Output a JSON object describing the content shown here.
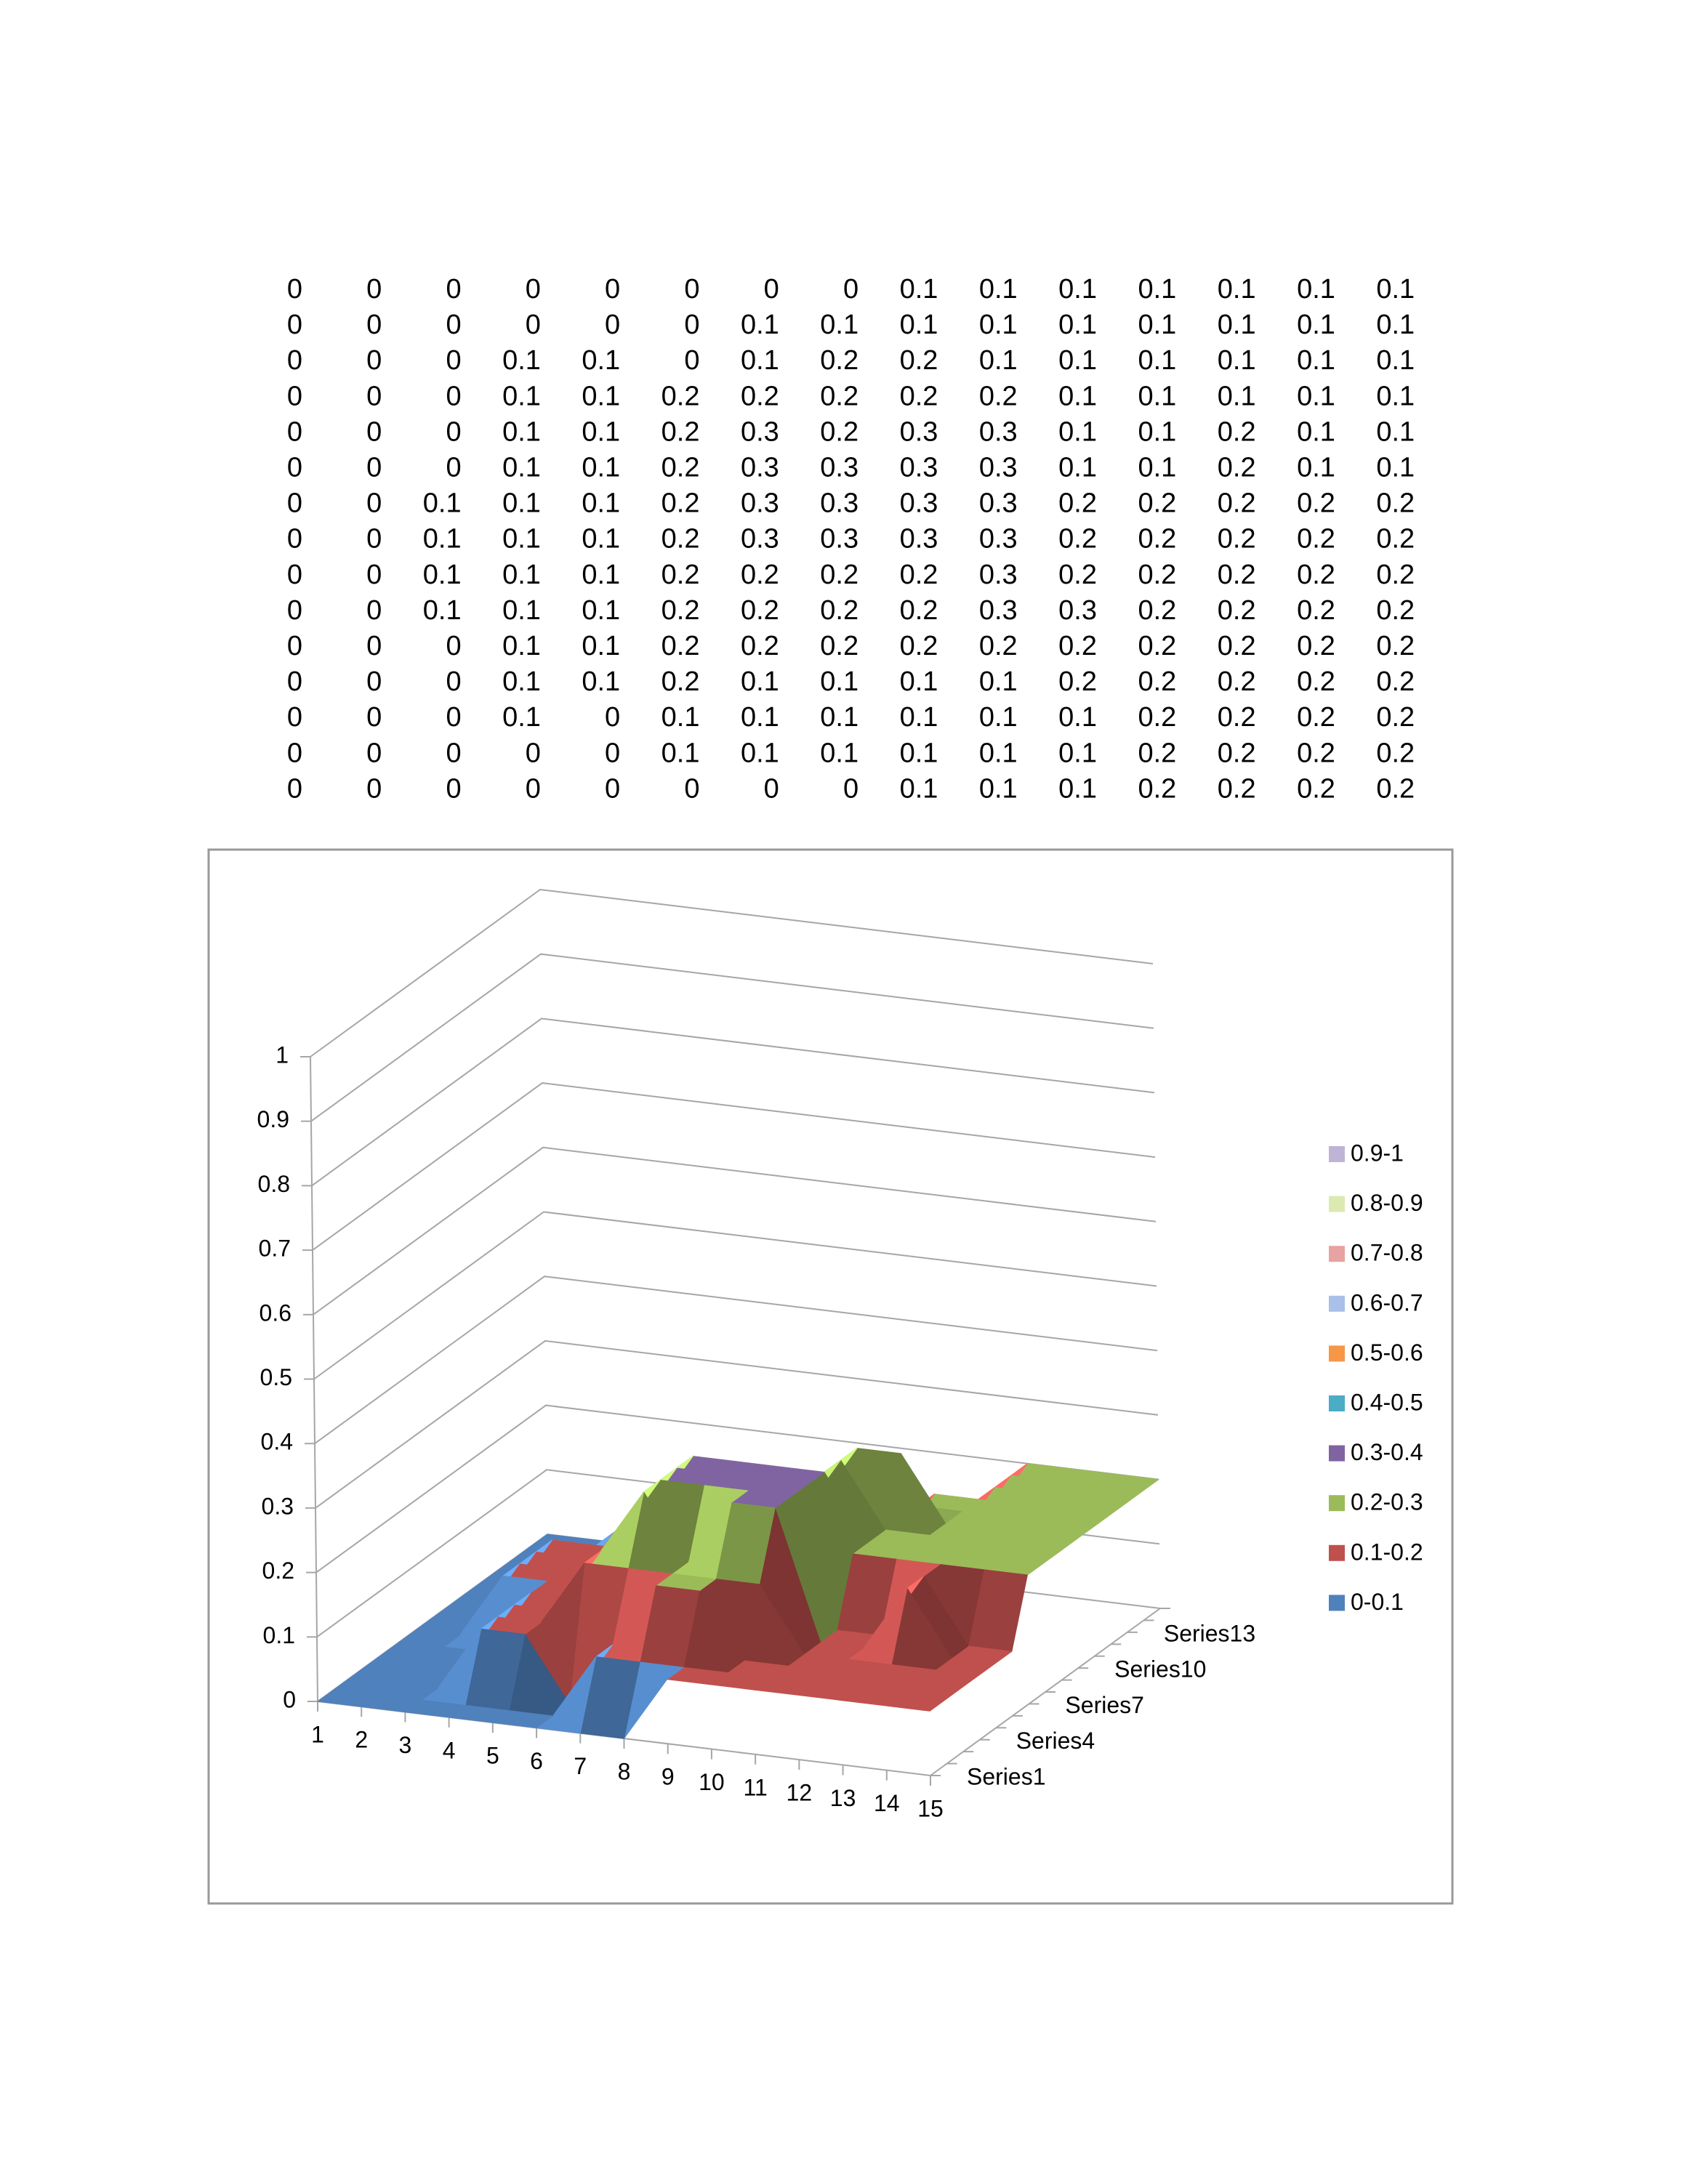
{
  "chart_data": {
    "type": "surface3d",
    "categories": [
      1,
      2,
      3,
      4,
      5,
      6,
      7,
      8,
      9,
      10,
      11,
      12,
      13,
      14,
      15
    ],
    "series": [
      {
        "name": "Series1",
        "values": [
          0,
          0,
          0,
          0,
          0,
          0,
          0,
          0,
          0.1,
          0.1,
          0.1,
          0.1,
          0.1,
          0.1,
          0.1
        ]
      },
      {
        "name": null,
        "values": [
          0,
          0,
          0,
          0,
          0,
          0,
          0.1,
          0.1,
          0.1,
          0.1,
          0.1,
          0.1,
          0.1,
          0.1,
          0.1
        ]
      },
      {
        "name": null,
        "values": [
          0,
          0,
          0,
          0.1,
          0.1,
          0,
          0.1,
          0.2,
          0.2,
          0.1,
          0.1,
          0.1,
          0.1,
          0.1,
          0.1
        ]
      },
      {
        "name": "Series4",
        "values": [
          0,
          0,
          0,
          0.1,
          0.1,
          0.2,
          0.2,
          0.2,
          0.2,
          0.2,
          0.1,
          0.1,
          0.1,
          0.1,
          0.1
        ]
      },
      {
        "name": null,
        "values": [
          0,
          0,
          0,
          0.1,
          0.1,
          0.2,
          0.3,
          0.2,
          0.3,
          0.3,
          0.1,
          0.1,
          0.2,
          0.1,
          0.1
        ]
      },
      {
        "name": null,
        "values": [
          0,
          0,
          0,
          0.1,
          0.1,
          0.2,
          0.3,
          0.3,
          0.3,
          0.3,
          0.1,
          0.1,
          0.2,
          0.1,
          0.1
        ]
      },
      {
        "name": "Series7",
        "values": [
          0,
          0,
          0.1,
          0.1,
          0.1,
          0.2,
          0.3,
          0.3,
          0.3,
          0.3,
          0.2,
          0.2,
          0.2,
          0.2,
          0.2
        ]
      },
      {
        "name": null,
        "values": [
          0,
          0,
          0.1,
          0.1,
          0.1,
          0.2,
          0.3,
          0.3,
          0.3,
          0.3,
          0.2,
          0.2,
          0.2,
          0.2,
          0.2
        ]
      },
      {
        "name": null,
        "values": [
          0,
          0,
          0.1,
          0.1,
          0.1,
          0.2,
          0.2,
          0.2,
          0.2,
          0.3,
          0.2,
          0.2,
          0.2,
          0.2,
          0.2
        ]
      },
      {
        "name": "Series10",
        "values": [
          0,
          0,
          0.1,
          0.1,
          0.1,
          0.2,
          0.2,
          0.2,
          0.2,
          0.3,
          0.3,
          0.2,
          0.2,
          0.2,
          0.2
        ]
      },
      {
        "name": null,
        "values": [
          0,
          0,
          0,
          0.1,
          0.1,
          0.2,
          0.2,
          0.2,
          0.2,
          0.2,
          0.2,
          0.2,
          0.2,
          0.2,
          0.2
        ]
      },
      {
        "name": null,
        "values": [
          0,
          0,
          0,
          0.1,
          0.1,
          0.2,
          0.1,
          0.1,
          0.1,
          0.1,
          0.2,
          0.2,
          0.2,
          0.2,
          0.2
        ]
      },
      {
        "name": "Series13",
        "values": [
          0,
          0,
          0,
          0.1,
          0,
          0.1,
          0.1,
          0.1,
          0.1,
          0.1,
          0.1,
          0.2,
          0.2,
          0.2,
          0.2
        ]
      },
      {
        "name": null,
        "values": [
          0,
          0,
          0,
          0,
          0,
          0.1,
          0.1,
          0.1,
          0.1,
          0.1,
          0.1,
          0.2,
          0.2,
          0.2,
          0.2
        ]
      },
      {
        "name": null,
        "values": [
          0,
          0,
          0,
          0,
          0,
          0,
          0,
          0,
          0.1,
          0.1,
          0.1,
          0.2,
          0.2,
          0.2,
          0.2
        ]
      }
    ],
    "zlim": [
      0,
      1
    ],
    "zticks": [
      0,
      0.1,
      0.2,
      0.3,
      0.4,
      0.5,
      0.6,
      0.7,
      0.8,
      0.9,
      1
    ],
    "grid": true,
    "legend_position": "right",
    "legend": [
      {
        "name": "0.9-1",
        "color": "#bfb3d6"
      },
      {
        "name": "0.8-0.9",
        "color": "#dce9b0"
      },
      {
        "name": "0.7-0.8",
        "color": "#e6a3a2"
      },
      {
        "name": "0.6-0.7",
        "color": "#a9c0e8"
      },
      {
        "name": "0.5-0.6",
        "color": "#f79646"
      },
      {
        "name": "0.4-0.5",
        "color": "#4bacc6"
      },
      {
        "name": "0.3-0.4",
        "color": "#8064a2"
      },
      {
        "name": "0.2-0.3",
        "color": "#9bbb59"
      },
      {
        "name": "0.1-0.2",
        "color": "#c0504d"
      },
      {
        "name": "0-0.1",
        "color": "#4f81bd"
      }
    ]
  }
}
